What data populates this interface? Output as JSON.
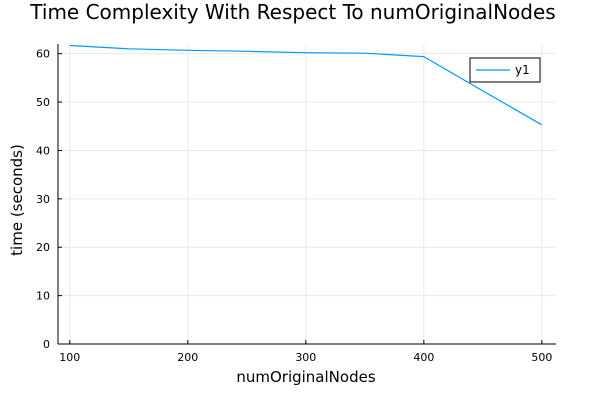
{
  "chart_data": {
    "type": "line",
    "title": "Time Complexity With Respect To numOriginalNodes",
    "xlabel": "numOriginalNodes",
    "ylabel": "time (seconds)",
    "xlim": [
      90,
      512
    ],
    "ylim": [
      0,
      62
    ],
    "x_ticks": [
      100,
      200,
      300,
      400,
      500
    ],
    "y_ticks": [
      0,
      10,
      20,
      30,
      40,
      50,
      60
    ],
    "grid": true,
    "legend_position": "top-right",
    "series": [
      {
        "name": "y1",
        "color": "#009af9",
        "x": [
          100,
          150,
          200,
          250,
          300,
          350,
          400,
          450,
          500
        ],
        "y": [
          61.7,
          61.0,
          60.7,
          60.5,
          60.2,
          60.1,
          59.4,
          52.3,
          45.3
        ]
      }
    ]
  }
}
